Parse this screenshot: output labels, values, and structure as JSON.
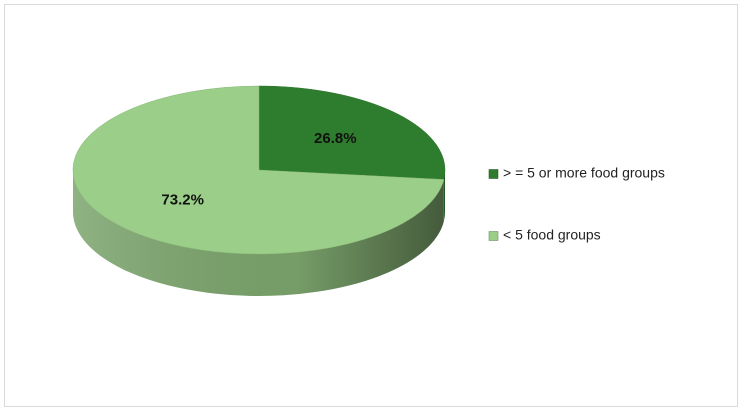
{
  "chart_data": {
    "type": "pie",
    "categories": [
      "> = 5 or more food groups",
      "< 5 food groups"
    ],
    "values": [
      26.8,
      73.2
    ],
    "value_labels": [
      "26.8%",
      "73.2%"
    ],
    "colors": [
      "#2e7d2e",
      "#9bce88"
    ],
    "legend": "right"
  }
}
